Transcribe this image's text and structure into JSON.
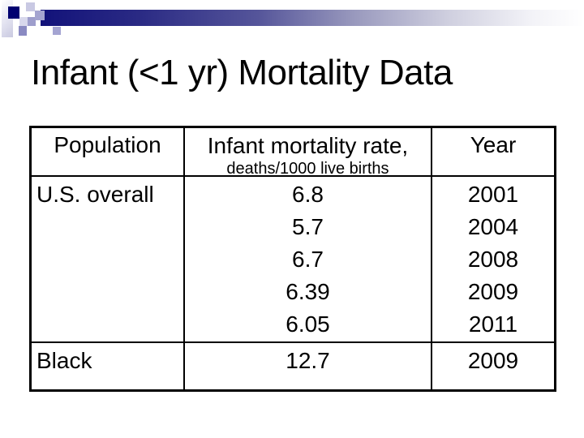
{
  "slide": {
    "title": "Infant (<1 yr) Mortality Data"
  },
  "table": {
    "columns": {
      "population": "Population",
      "rate_main": "Infant mortality rate,",
      "rate_sub": "deaths/1000 live births",
      "year": "Year"
    },
    "rows": [
      {
        "population": "U.S. overall",
        "rates": [
          "6.8",
          "5.7",
          "6.7",
          "6.39",
          "6.05"
        ],
        "years": [
          "2001",
          "2004",
          "2008",
          "2009",
          "2011"
        ]
      },
      {
        "population": "Black",
        "rates": [
          "12.7"
        ],
        "years": [
          "2009"
        ]
      }
    ]
  },
  "colors": {
    "accent_navy": "#000070",
    "bar_gradient_start": "#12127a",
    "lavender": "#a4a4d0",
    "text": "#000000",
    "background": "#ffffff"
  }
}
